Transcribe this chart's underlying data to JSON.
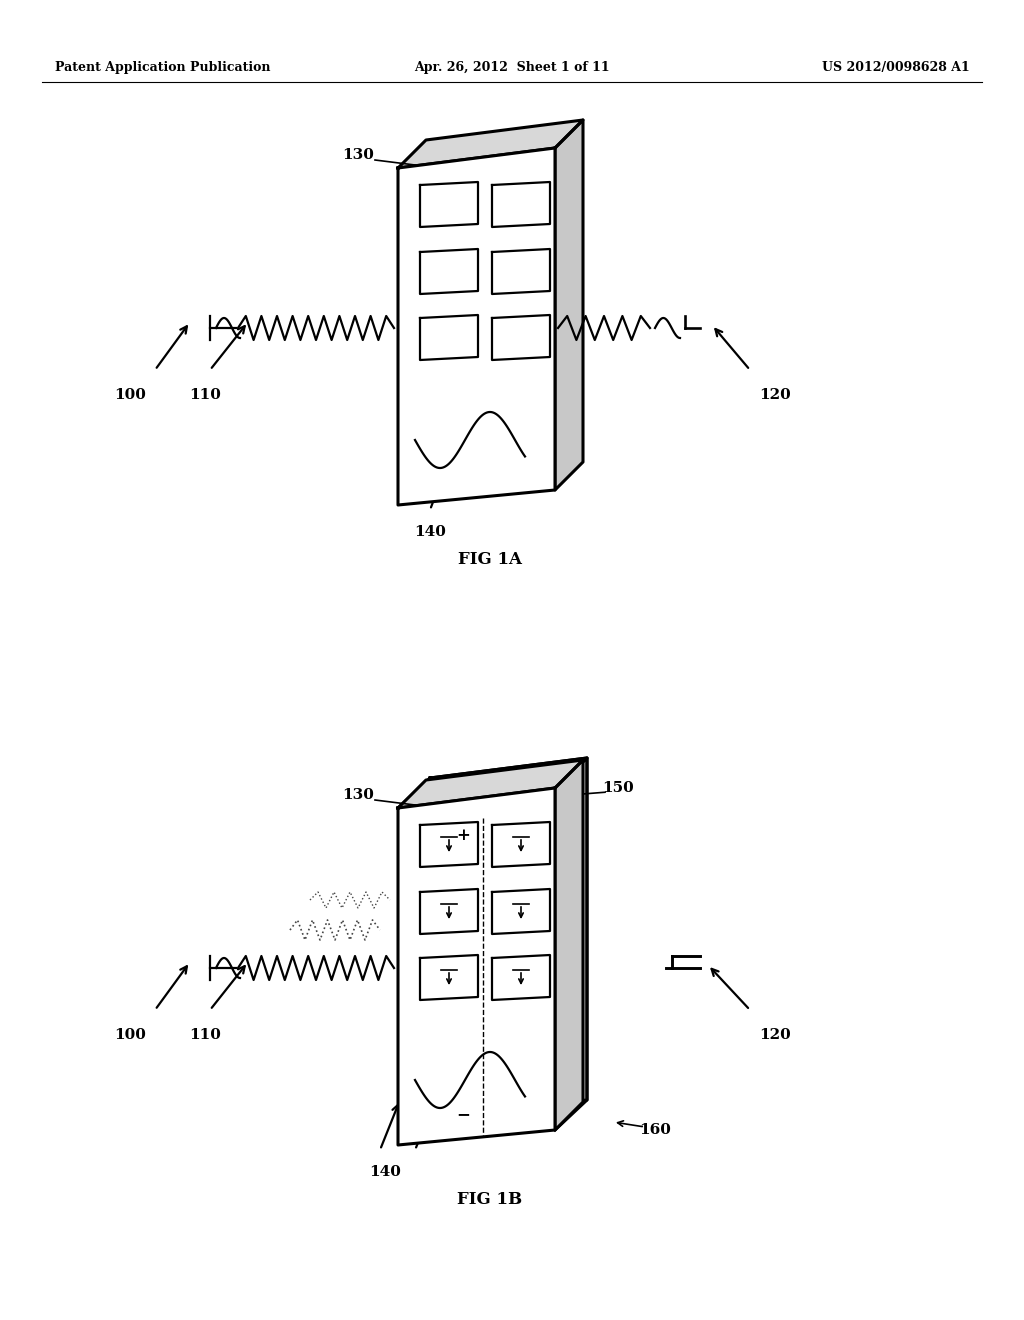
{
  "bg_color": "#ffffff",
  "header_left": "Patent Application Publication",
  "header_mid": "Apr. 26, 2012  Sheet 1 of 11",
  "header_right": "US 2012/0098628 A1",
  "fig1a_label": "FIG 1A",
  "fig1b_label": "FIG 1B",
  "label_100": "100",
  "label_110": "110",
  "label_120": "120",
  "label_130": "130",
  "label_140": "140",
  "label_150": "150",
  "label_160": "160"
}
